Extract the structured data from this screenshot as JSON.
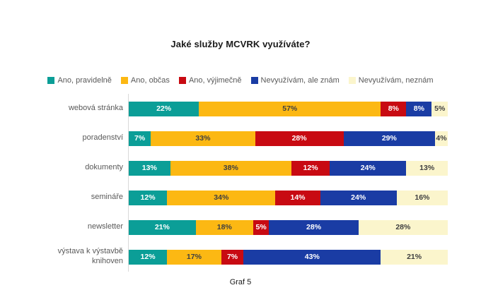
{
  "title": "Jaké služby MCVRK využíváte?",
  "caption": "Graf 5",
  "colors": {
    "background": "#ffffff",
    "axis_line": "#d9d9d9",
    "title_text": "#1a1a1a",
    "category_text": "#595959",
    "legend_text": "#595959",
    "dark_label_text": "#404040",
    "light_label_text": "#ffffff"
  },
  "chart_data": {
    "type": "bar",
    "orientation": "horizontal",
    "stacked": true,
    "unit": "%",
    "title": "Jaké služby MCVRK využíváte?",
    "legend_position": "top",
    "grid": false,
    "xlim": [
      0,
      100
    ],
    "categories": [
      "webová stránka",
      "poradenství",
      "dokumenty",
      "semináře",
      "newsletter",
      "výstava k výstavbě knihoven"
    ],
    "series": [
      {
        "name": "Ano, pravidelně",
        "color": "#0b9e97",
        "label_color": "#ffffff",
        "values": [
          22,
          7,
          13,
          12,
          21,
          12
        ]
      },
      {
        "name": "Ano, občas",
        "color": "#fcb813",
        "label_color": "#404040",
        "values": [
          57,
          33,
          38,
          34,
          18,
          17
        ]
      },
      {
        "name": "Ano, výjimečně",
        "color": "#c80a12",
        "label_color": "#ffffff",
        "values": [
          8,
          28,
          12,
          14,
          5,
          7
        ]
      },
      {
        "name": "Nevyužívám, ale znám",
        "color": "#1a3ca4",
        "label_color": "#ffffff",
        "values": [
          8,
          29,
          24,
          24,
          28,
          43
        ]
      },
      {
        "name": "Nevyužívám, neznám",
        "color": "#fbf5cc",
        "label_color": "#404040",
        "values": [
          5,
          4,
          13,
          16,
          28,
          21
        ]
      }
    ]
  }
}
